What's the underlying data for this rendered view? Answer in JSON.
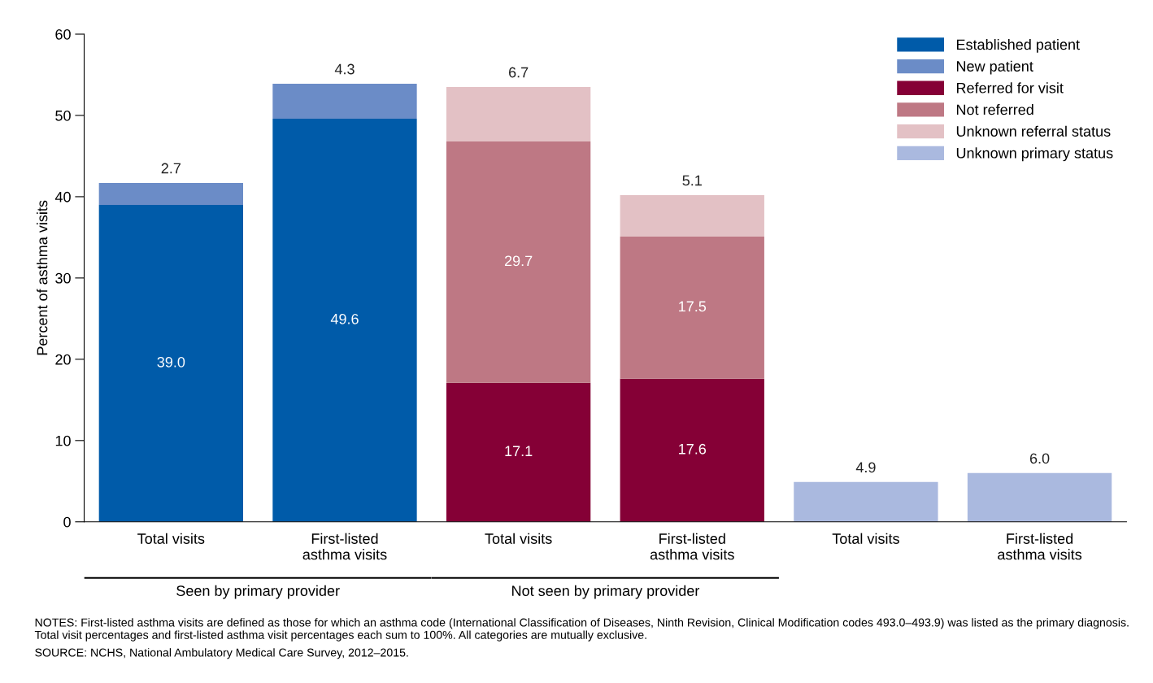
{
  "chart_data": {
    "type": "bar",
    "stacked": true,
    "ylabel": "Percent of asthma visits",
    "categories": [
      "Total visits",
      "First-listed\nasthma visits",
      "Total visits",
      "First-listed\nasthma visits",
      "Total visits",
      "First-listed\nasthma visits"
    ],
    "series": [
      {
        "name": "Established patient",
        "color": "#005ba9",
        "values": [
          39.0,
          49.6,
          null,
          null,
          null,
          null
        ],
        "value_labels": [
          "39.0",
          "49.6",
          null,
          null,
          null,
          null
        ]
      },
      {
        "name": "New patient",
        "color": "#6b8cc7",
        "values": [
          2.7,
          4.3,
          null,
          null,
          null,
          null
        ],
        "value_labels": [
          "2.7",
          "4.3",
          null,
          null,
          null,
          null
        ]
      },
      {
        "name": "Referred for visit",
        "color": "#850036",
        "values": [
          null,
          null,
          17.1,
          17.6,
          null,
          null
        ],
        "value_labels": [
          null,
          null,
          "17.1",
          "17.6",
          null,
          null
        ]
      },
      {
        "name": "Not referred",
        "color": "#be7884",
        "values": [
          null,
          null,
          29.7,
          17.5,
          null,
          null
        ],
        "value_labels": [
          null,
          null,
          "29.7",
          "17.5",
          null,
          null
        ]
      },
      {
        "name": "Unknown referral status",
        "color": "#e3c1c5",
        "values": [
          null,
          null,
          6.7,
          5.1,
          null,
          null
        ],
        "value_labels": [
          null,
          null,
          "6.7",
          "5.1",
          null,
          null
        ]
      },
      {
        "name": "Unknown primary status",
        "color": "#aab9df",
        "values": [
          null,
          null,
          null,
          null,
          4.9,
          6.0
        ],
        "value_labels": [
          null,
          null,
          null,
          null,
          "4.9",
          "6.0"
        ]
      }
    ],
    "ylim": [
      0,
      60
    ],
    "yticks": [
      0,
      10,
      20,
      30,
      40,
      50,
      60
    ],
    "grid": false,
    "legend": "top right",
    "annotations": [
      "Seen by primary provider",
      "Not seen by primary provider",
      "NOTES: First-listed asthma visits are defined as those for which an asthma code (International Classification of Diseases, Ninth Revision, Clinical Modification codes 493.0–493.9) was listed as the primary diagnosis. Total visit percentages and first-listed asthma visit percentages each sum to 100%. All categories are mutually exclusive.",
      "SOURCE: NCHS, National Ambulatory Medical Care Survey, 2012–2015."
    ]
  }
}
